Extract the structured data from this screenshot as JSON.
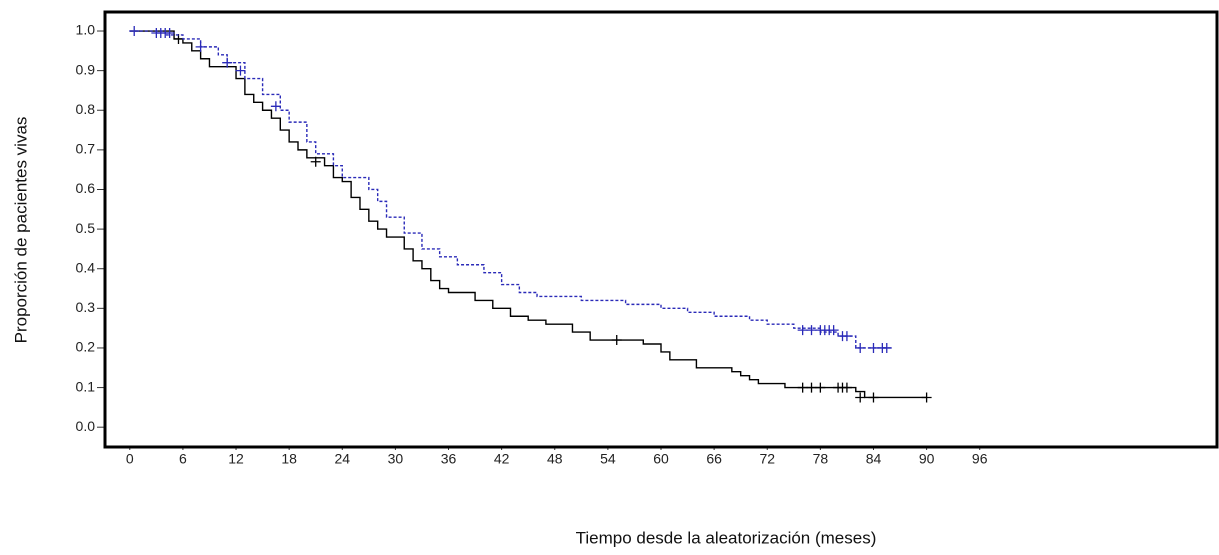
{
  "chart_data": {
    "type": "step",
    "y_label": "Proporción de pacientes vivas",
    "x_label": "Tiempo desde la aleatorización (meses)",
    "xlim": [
      -2.8,
      122.8
    ],
    "ylim": [
      -0.05,
      1.048
    ],
    "xticks": [
      0,
      6,
      12,
      18,
      24,
      30,
      36,
      42,
      48,
      54,
      60,
      66,
      72,
      78,
      84,
      90,
      96
    ],
    "yticks": [
      {
        "value": 0,
        "label": "0.0"
      },
      0.1,
      0.2,
      0.3,
      0.4,
      0.5,
      0.6,
      0.7,
      0.8,
      0.9,
      {
        "value": 1,
        "label": "1.0"
      }
    ],
    "series": [
      {
        "color": "#000000",
        "dashed": false,
        "x": [
          0,
          5,
          6,
          7,
          8,
          9,
          12,
          13,
          14,
          15,
          16,
          17,
          18,
          19,
          20,
          22,
          23,
          24,
          25,
          26,
          27,
          28,
          29,
          31,
          32,
          33,
          34,
          35,
          36,
          39,
          41,
          43,
          45,
          47,
          50,
          52,
          58,
          60,
          61,
          64,
          68,
          69,
          70,
          71,
          74,
          82,
          83,
          90
        ],
        "values": [
          1.0,
          0.98,
          0.97,
          0.95,
          0.93,
          0.91,
          0.88,
          0.84,
          0.82,
          0.8,
          0.78,
          0.75,
          0.72,
          0.7,
          0.68,
          0.66,
          0.63,
          0.62,
          0.58,
          0.55,
          0.52,
          0.5,
          0.48,
          0.45,
          0.42,
          0.4,
          0.37,
          0.35,
          0.34,
          0.32,
          0.3,
          0.28,
          0.27,
          0.26,
          0.24,
          0.22,
          0.21,
          0.19,
          0.17,
          0.15,
          0.14,
          0.13,
          0.12,
          0.11,
          0.1,
          0.09,
          0.075,
          0.075
        ],
        "censored": {
          "x": [
            5.5,
            21,
            55,
            76,
            77,
            78,
            80,
            80.5,
            81,
            82.5,
            84,
            90
          ],
          "y": [
            0.98,
            0.67,
            0.22,
            0.1,
            0.1,
            0.1,
            0.1,
            0.1,
            0.1,
            0.075,
            0.075,
            0.075
          ]
        }
      },
      {
        "color": "#2a2ab8",
        "dashed": true,
        "x": [
          0,
          4,
          6,
          8,
          10,
          11,
          13,
          15,
          17,
          18,
          20,
          21,
          23,
          24,
          27,
          28,
          29,
          31,
          33,
          35,
          37,
          40,
          42,
          44,
          46,
          51,
          56,
          60,
          63,
          66,
          70,
          72,
          75,
          78,
          80,
          82,
          86
        ],
        "values": [
          1.0,
          0.99,
          0.98,
          0.96,
          0.94,
          0.92,
          0.88,
          0.84,
          0.8,
          0.77,
          0.72,
          0.69,
          0.66,
          0.63,
          0.6,
          0.57,
          0.53,
          0.49,
          0.45,
          0.43,
          0.41,
          0.39,
          0.36,
          0.34,
          0.33,
          0.32,
          0.31,
          0.3,
          0.29,
          0.28,
          0.27,
          0.26,
          0.25,
          0.24,
          0.23,
          0.2,
          0.2
        ],
        "censored": {
          "x": [
            0.5,
            3,
            3.5,
            4,
            4.5,
            8,
            11,
            12.5,
            16.5,
            76,
            77,
            78,
            78.5,
            79,
            79.5,
            80.5,
            81,
            82.5,
            84,
            85,
            85.5
          ],
          "y": [
            1.0,
            0.995,
            0.995,
            0.995,
            0.995,
            0.96,
            0.92,
            0.9,
            0.81,
            0.245,
            0.245,
            0.245,
            0.245,
            0.245,
            0.245,
            0.23,
            0.23,
            0.2,
            0.2,
            0.2,
            0.2
          ]
        }
      }
    ]
  }
}
